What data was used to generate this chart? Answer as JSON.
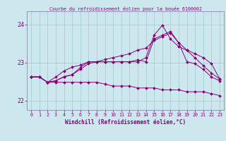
{
  "title": "Courbe du refroidissement éolien pour la bouée 6100002",
  "xlabel": "Windchill (Refroidissement éolien,°C)",
  "background_color": "#cce8ee",
  "grid_color": "#99cccc",
  "line_color": "#880077",
  "xlim": [
    -0.5,
    23.5
  ],
  "ylim": [
    21.75,
    24.35
  ],
  "yticks": [
    22,
    23,
    24
  ],
  "xticks": [
    0,
    1,
    2,
    3,
    4,
    5,
    6,
    7,
    8,
    9,
    10,
    11,
    12,
    13,
    14,
    15,
    16,
    17,
    18,
    19,
    20,
    21,
    22,
    23
  ],
  "series": [
    [
      22.62,
      22.62,
      22.48,
      22.52,
      22.63,
      22.68,
      22.87,
      23.02,
      23.02,
      23.02,
      23.02,
      23.02,
      23.02,
      23.07,
      23.02,
      23.62,
      23.72,
      23.82,
      23.52,
      23.02,
      22.97,
      22.82,
      22.62,
      22.52
    ],
    [
      22.62,
      22.62,
      22.48,
      22.62,
      22.78,
      22.88,
      22.93,
      23.02,
      23.02,
      23.08,
      23.13,
      23.18,
      23.23,
      23.33,
      23.38,
      23.58,
      23.68,
      23.78,
      23.52,
      23.33,
      23.23,
      23.13,
      22.97,
      22.57
    ],
    [
      22.62,
      22.62,
      22.48,
      22.52,
      22.62,
      22.68,
      22.82,
      22.97,
      23.02,
      23.02,
      23.02,
      23.02,
      23.02,
      23.02,
      23.13,
      23.72,
      23.98,
      23.62,
      23.42,
      23.32,
      23.12,
      22.92,
      22.72,
      22.57
    ],
    [
      22.62,
      22.62,
      22.48,
      22.48,
      22.48,
      22.48,
      22.48,
      22.48,
      22.48,
      22.43,
      22.38,
      22.38,
      22.38,
      22.33,
      22.33,
      22.33,
      22.28,
      22.28,
      22.28,
      22.23,
      22.23,
      22.23,
      22.18,
      22.13
    ]
  ]
}
